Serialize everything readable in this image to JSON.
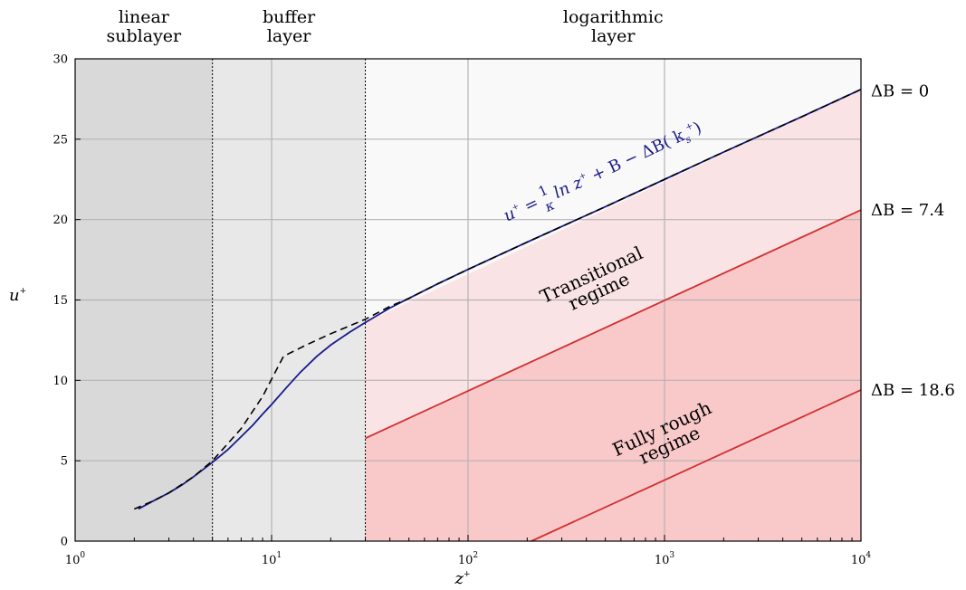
{
  "chart_data": {
    "type": "line",
    "x_scale": "log",
    "xlim": [
      1,
      10000
    ],
    "ylim": [
      0,
      30
    ],
    "xlabel": "z",
    "xlabel_sup": "+",
    "ylabel": "u",
    "ylabel_sup": "+",
    "x_ticks": [
      {
        "base": "10",
        "exp": "0",
        "value": 1
      },
      {
        "base": "10",
        "exp": "1",
        "value": 10
      },
      {
        "base": "10",
        "exp": "2",
        "value": 100
      },
      {
        "base": "10",
        "exp": "3",
        "value": 1000
      },
      {
        "base": "10",
        "exp": "4",
        "value": 10000
      }
    ],
    "y_ticks": [
      "0",
      "5",
      "10",
      "15",
      "20",
      "25",
      "30"
    ],
    "grid": true,
    "regions": [
      {
        "title_lines": [
          "linear",
          "sublayer"
        ],
        "x_range": [
          1,
          5
        ],
        "color": "#d9d9d9"
      },
      {
        "title_lines": [
          "buffer",
          "layer"
        ],
        "x_range": [
          5,
          30
        ],
        "color": "#e8e8e8"
      },
      {
        "title_lines": [
          "logarithmic",
          "layer"
        ],
        "x_range": [
          30,
          10000
        ],
        "color": "#f9f9f9"
      }
    ],
    "region_boundaries": [
      5,
      30
    ],
    "series": [
      {
        "name": "",
        "style": "solid",
        "color": "#1a1a8c",
        "x": [
          2.1,
          2.5,
          3,
          3.5,
          4,
          5,
          6,
          7,
          8,
          9,
          10,
          12,
          14,
          17,
          20,
          25,
          30,
          40,
          50,
          70,
          100,
          200,
          500,
          1000,
          2000,
          5000,
          10000
        ],
        "y": [
          2.0,
          2.5,
          3.0,
          3.5,
          4.0,
          4.9,
          5.7,
          6.5,
          7.2,
          7.9,
          8.5,
          9.6,
          10.5,
          11.5,
          12.2,
          13.0,
          13.6,
          14.5,
          15.1,
          16.0,
          16.9,
          18.6,
          20.8,
          22.5,
          24.2,
          26.4,
          28.1
        ]
      },
      {
        "name": "",
        "style": "dashed",
        "color": "#000000",
        "x": [
          2.0,
          2.5,
          3,
          4,
          5,
          7,
          9,
          11.5,
          15,
          20,
          30,
          40,
          50,
          70,
          100,
          200,
          500,
          1000,
          2000,
          5000,
          10000
        ],
        "y": [
          2.0,
          2.5,
          3.0,
          4.0,
          5.0,
          7.0,
          9.0,
          11.5,
          12.2,
          12.9,
          13.8,
          14.6,
          15.1,
          16.0,
          16.9,
          18.6,
          20.8,
          22.5,
          24.2,
          26.4,
          28.1
        ]
      },
      {
        "name": "",
        "style": "solid",
        "color": "#d03030",
        "x": [
          30,
          10000
        ],
        "y": [
          6.4,
          20.6
        ]
      },
      {
        "name": "",
        "style": "solid",
        "color": "#d03030",
        "x": [
          210,
          10000
        ],
        "y": [
          0,
          9.4
        ]
      }
    ],
    "fills": [
      {
        "name": "transitional",
        "color": "#fae3e4",
        "x_range": [
          30,
          10000
        ],
        "upper_y": [
          13.6,
          28.1
        ],
        "lower_y": [
          6.4,
          20.6
        ]
      },
      {
        "name": "fully-rough",
        "color": "#f9c8c9",
        "x_range": [
          30,
          10000
        ],
        "upper_y": [
          6.4,
          20.6
        ],
        "lower_y": [
          0,
          0
        ]
      }
    ],
    "annotations": {
      "law": {
        "parts": [
          "u",
          "+",
          " = ",
          "1",
          "κ",
          " ln z",
          "+",
          " + B − ΔB( k",
          "s",
          "+",
          ")"
        ]
      },
      "transitional_lines": [
        "Transitional",
        "regime"
      ],
      "fully_rough_lines": [
        "Fully rough",
        "regime"
      ],
      "delta_b_labels": [
        {
          "text": "ΔB = 0",
          "y": 28
        },
        {
          "text": "ΔB = 7.4",
          "y": 20.6
        },
        {
          "text": "ΔB = 18.6",
          "y": 9.4
        }
      ]
    }
  }
}
